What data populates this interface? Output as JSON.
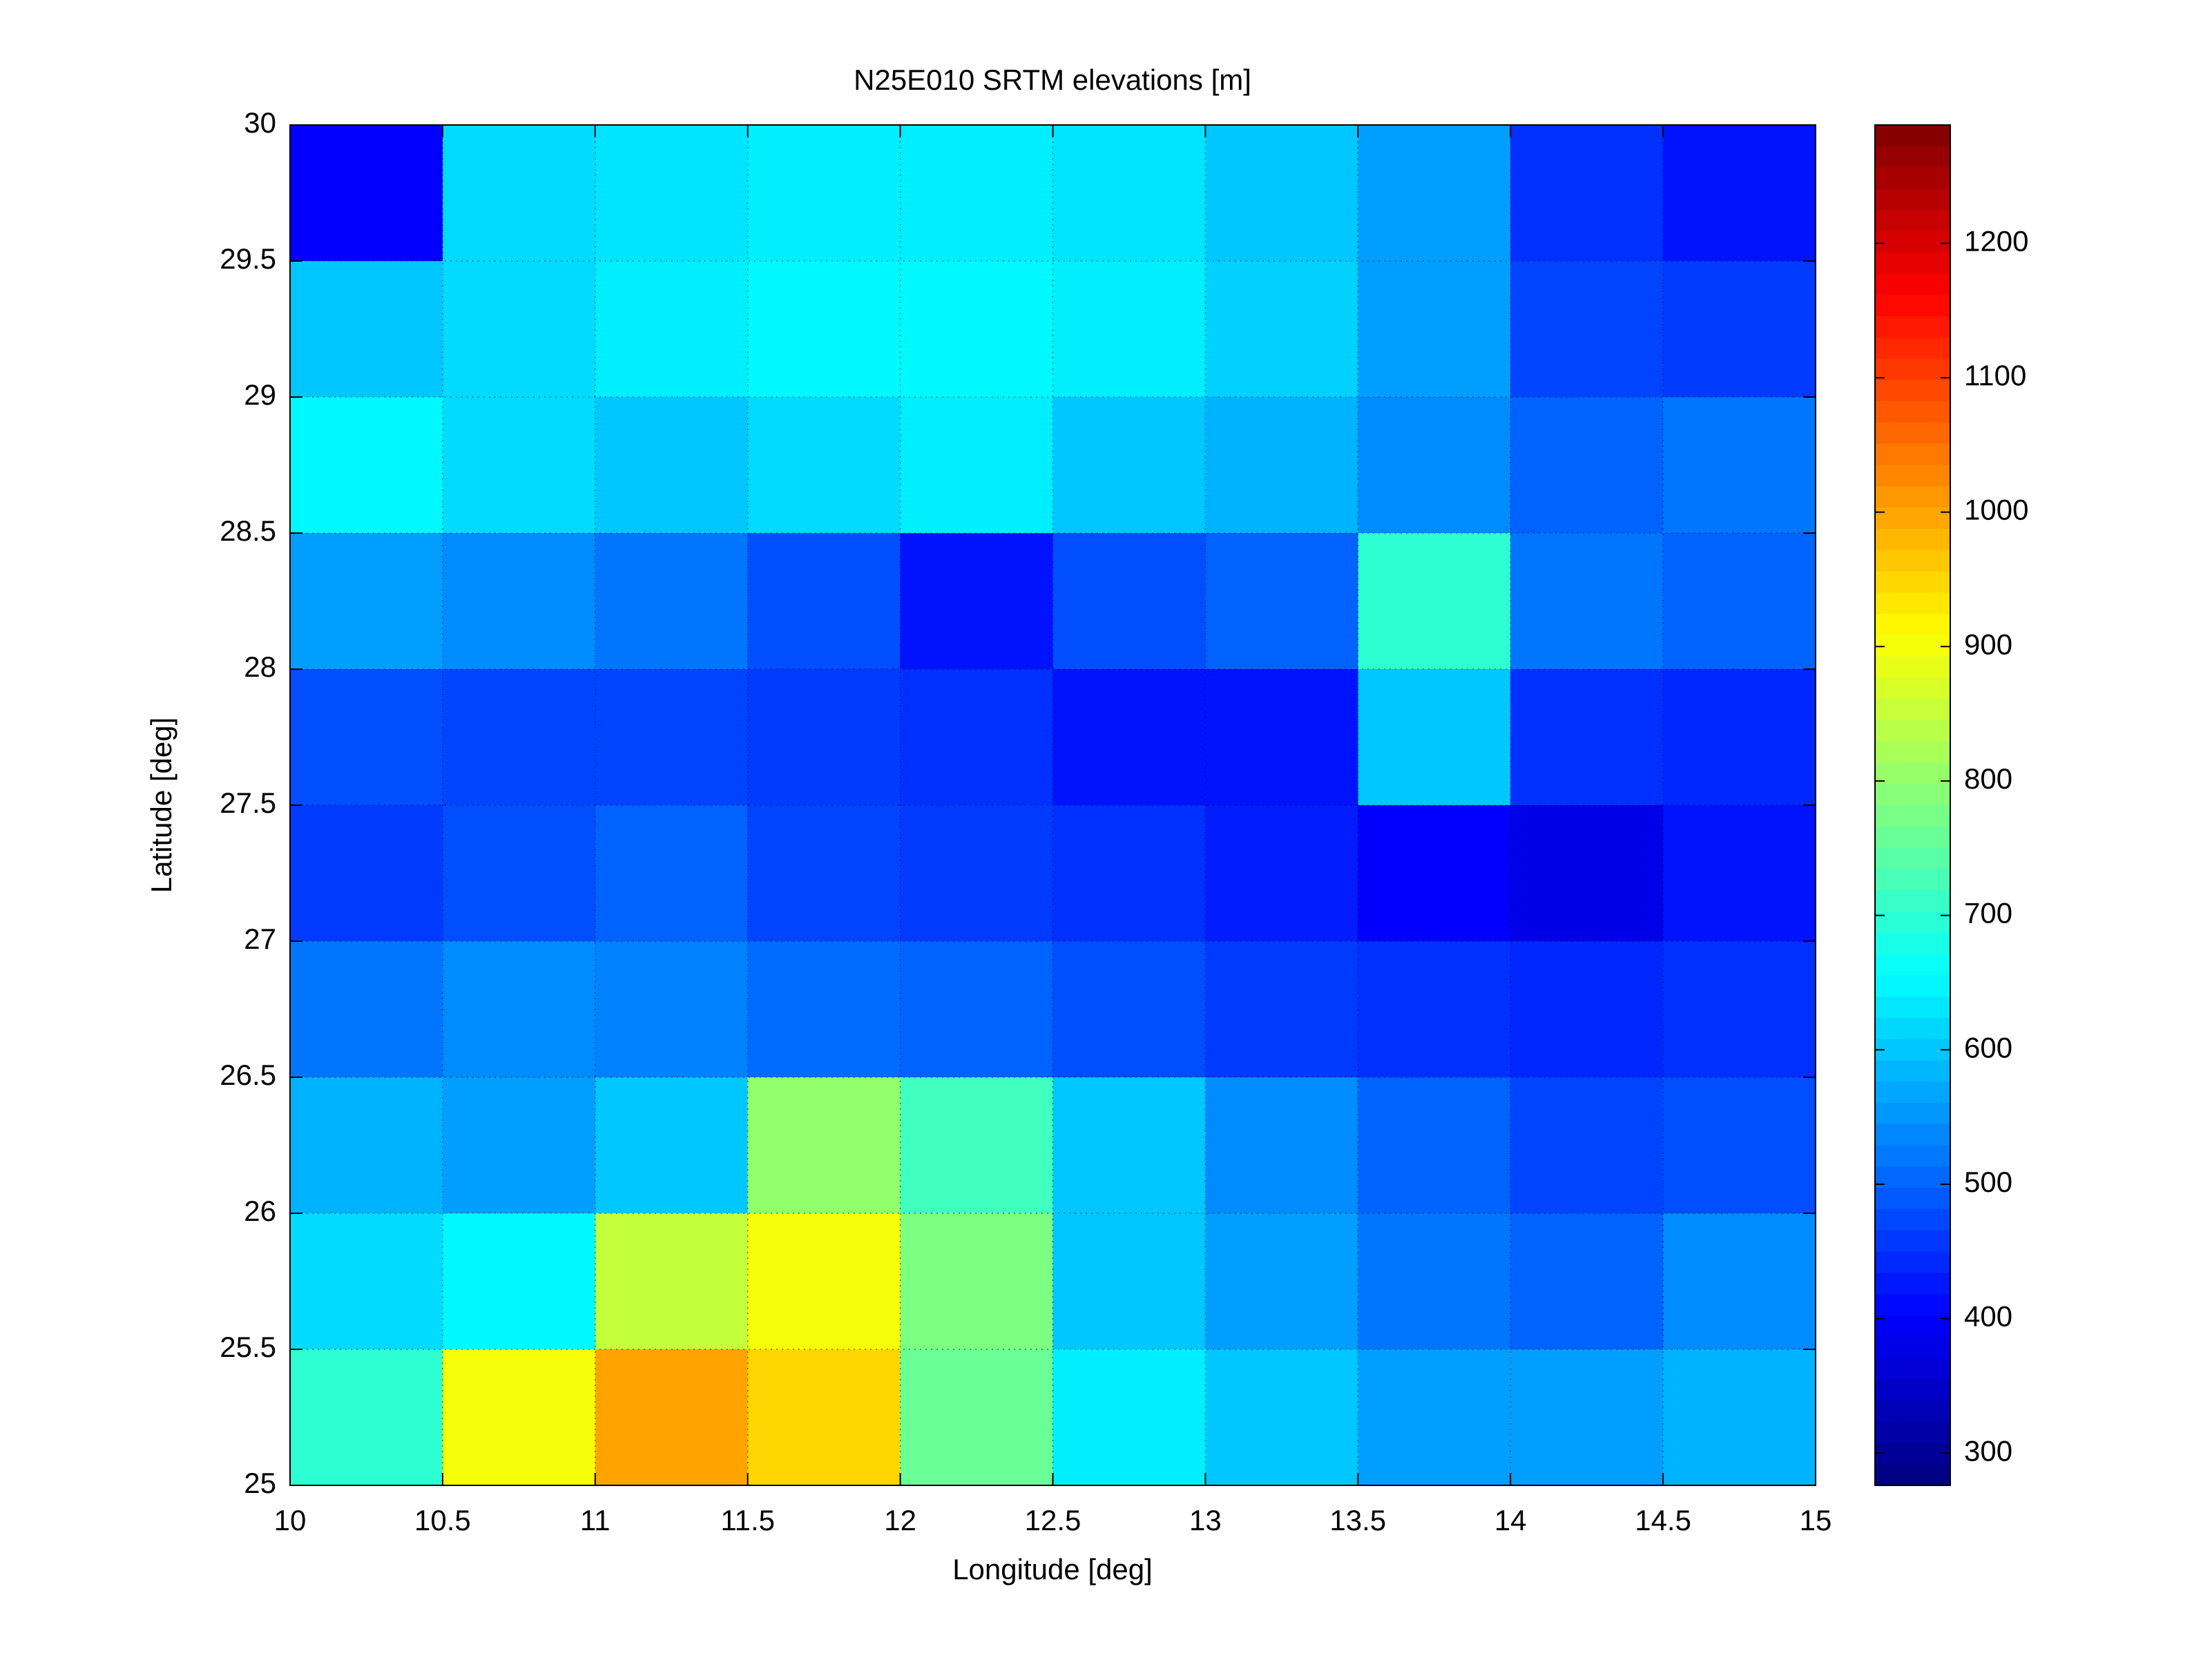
{
  "chart_data": {
    "type": "heatmap",
    "title": "N25E010 SRTM elevations [m]",
    "x_label": "Longitude [deg]",
    "y_label": "Latitude [deg]",
    "xlim": [
      10,
      15
    ],
    "ylim": [
      25,
      30
    ],
    "xticks": [
      10,
      10.5,
      11,
      11.5,
      12,
      12.5,
      13,
      13.5,
      14,
      14.5,
      15
    ],
    "yticks": [
      25,
      25.5,
      26,
      26.5,
      27,
      27.5,
      28,
      28.5,
      29,
      29.5,
      30
    ],
    "grid": true,
    "colormap": "jet",
    "clim": [
      276,
      1288
    ],
    "colorbar_ticks": [
      300,
      400,
      500,
      600,
      700,
      800,
      900,
      1000,
      1100,
      1200
    ],
    "z": [
      [
        400,
        620,
        630,
        640,
        640,
        630,
        600,
        560,
        450,
        420
      ],
      [
        600,
        620,
        640,
        650,
        650,
        640,
        610,
        560,
        470,
        460
      ],
      [
        650,
        620,
        600,
        620,
        640,
        600,
        580,
        540,
        500,
        520
      ],
      [
        560,
        540,
        520,
        480,
        420,
        480,
        500,
        700,
        520,
        500
      ],
      [
        480,
        470,
        470,
        460,
        450,
        420,
        420,
        600,
        450,
        440
      ],
      [
        460,
        480,
        500,
        470,
        460,
        450,
        430,
        400,
        380,
        420
      ],
      [
        520,
        540,
        530,
        510,
        500,
        480,
        460,
        450,
        440,
        450
      ],
      [
        580,
        560,
        600,
        800,
        720,
        600,
        540,
        500,
        470,
        480
      ],
      [
        620,
        650,
        850,
        900,
        780,
        600,
        560,
        520,
        500,
        540
      ],
      [
        700,
        900,
        1000,
        950,
        760,
        640,
        600,
        560,
        560,
        580
      ]
    ]
  }
}
